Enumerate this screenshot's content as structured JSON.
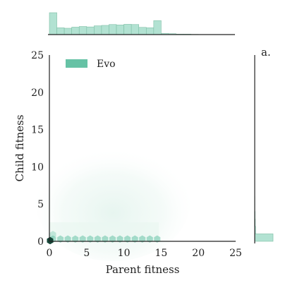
{
  "chart_data": {
    "type": "heatmap",
    "panel_label": "a.",
    "xlabel": "Parent fitness",
    "ylabel": "Child fitness",
    "xlim": [
      0,
      25
    ],
    "ylim": [
      0,
      25
    ],
    "xticks": [
      "0",
      "5",
      "10",
      "15",
      "20",
      "25"
    ],
    "yticks": [
      "0",
      "5",
      "10",
      "15",
      "20",
      "25"
    ],
    "grid": false,
    "legend": {
      "position": "top-left",
      "entries": [
        "Evo"
      ]
    },
    "colors": {
      "series": "#66c2a5",
      "fill": "#b2e2d2",
      "axis": "#222222"
    },
    "series": [
      {
        "name": "Evo"
      }
    ],
    "marginal_x": {
      "bin_width": 1,
      "x_start": 0,
      "relative_density": [
        1.0,
        0.31,
        0.29,
        0.34,
        0.37,
        0.35,
        0.4,
        0.42,
        0.46,
        0.44,
        0.47,
        0.46,
        0.33,
        0.31,
        0.64,
        0.05,
        0.04,
        0.02,
        0.02,
        0.01,
        0.0,
        0.0,
        0.0,
        0.0,
        0.0
      ]
    },
    "marginal_y": {
      "bin_width": 1,
      "y_start": 0,
      "relative_density": [
        1.0,
        0.05,
        0.03,
        0.02,
        0.01,
        0.01,
        0.0,
        0.0,
        0.0,
        0.0
      ]
    },
    "hexbin": {
      "bright_row": {
        "y": 0.3,
        "x_values": [
          0,
          1,
          2,
          3,
          4,
          5,
          6,
          7,
          8,
          9,
          10,
          11,
          12,
          13,
          14
        ],
        "density": 0.55
      },
      "dark_point": {
        "x": 0,
        "y": 0,
        "density": 1.0
      },
      "faint_region": {
        "x_range": [
          0,
          17
        ],
        "y_max_at_x": [
          [
            0,
            2
          ],
          [
            5,
            8
          ],
          [
            10,
            12
          ],
          [
            14,
            13
          ],
          [
            17,
            4
          ]
        ]
      }
    }
  }
}
